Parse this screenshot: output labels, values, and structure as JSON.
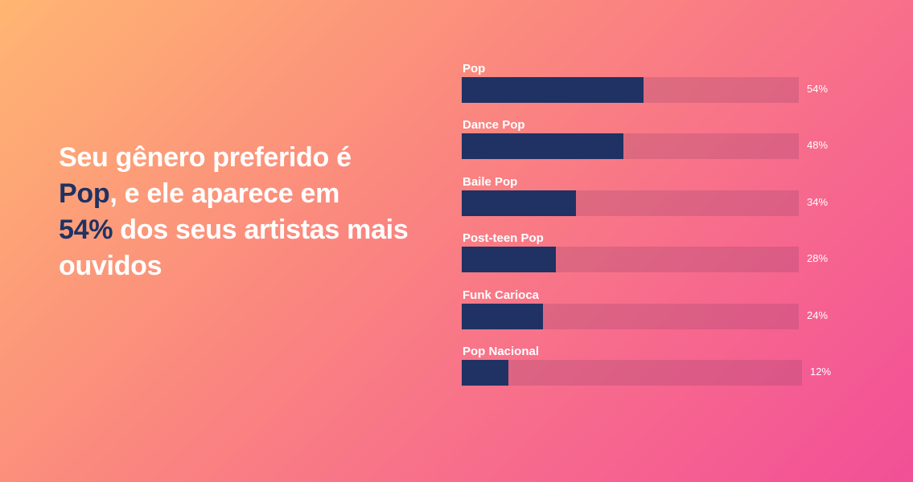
{
  "headline": {
    "line1": "Seu gênero preferido é",
    "genre": "Pop",
    "mid": ", e ele aparece em",
    "percent": "54%",
    "end": " dos seus artistas mais ouvidos"
  },
  "colors": {
    "bar_fill": "#1F3263",
    "text": "#FFFFFF",
    "gradient_start": "#FFB672",
    "gradient_end": "#F24F97"
  },
  "chart_data": {
    "type": "bar",
    "orientation": "horizontal",
    "categories": [
      "Pop",
      "Dance Pop",
      "Baile Pop",
      "Post-teen Pop",
      "Funk Carioca",
      "Pop Nacional"
    ],
    "values": [
      54,
      48,
      34,
      28,
      24,
      12
    ],
    "value_labels": [
      "54%",
      "48%",
      "34%",
      "28%",
      "24%",
      "12%"
    ],
    "xlim": [
      0,
      100
    ],
    "title": "",
    "xlabel": "",
    "ylabel": "",
    "grid": false,
    "legend": "none"
  }
}
